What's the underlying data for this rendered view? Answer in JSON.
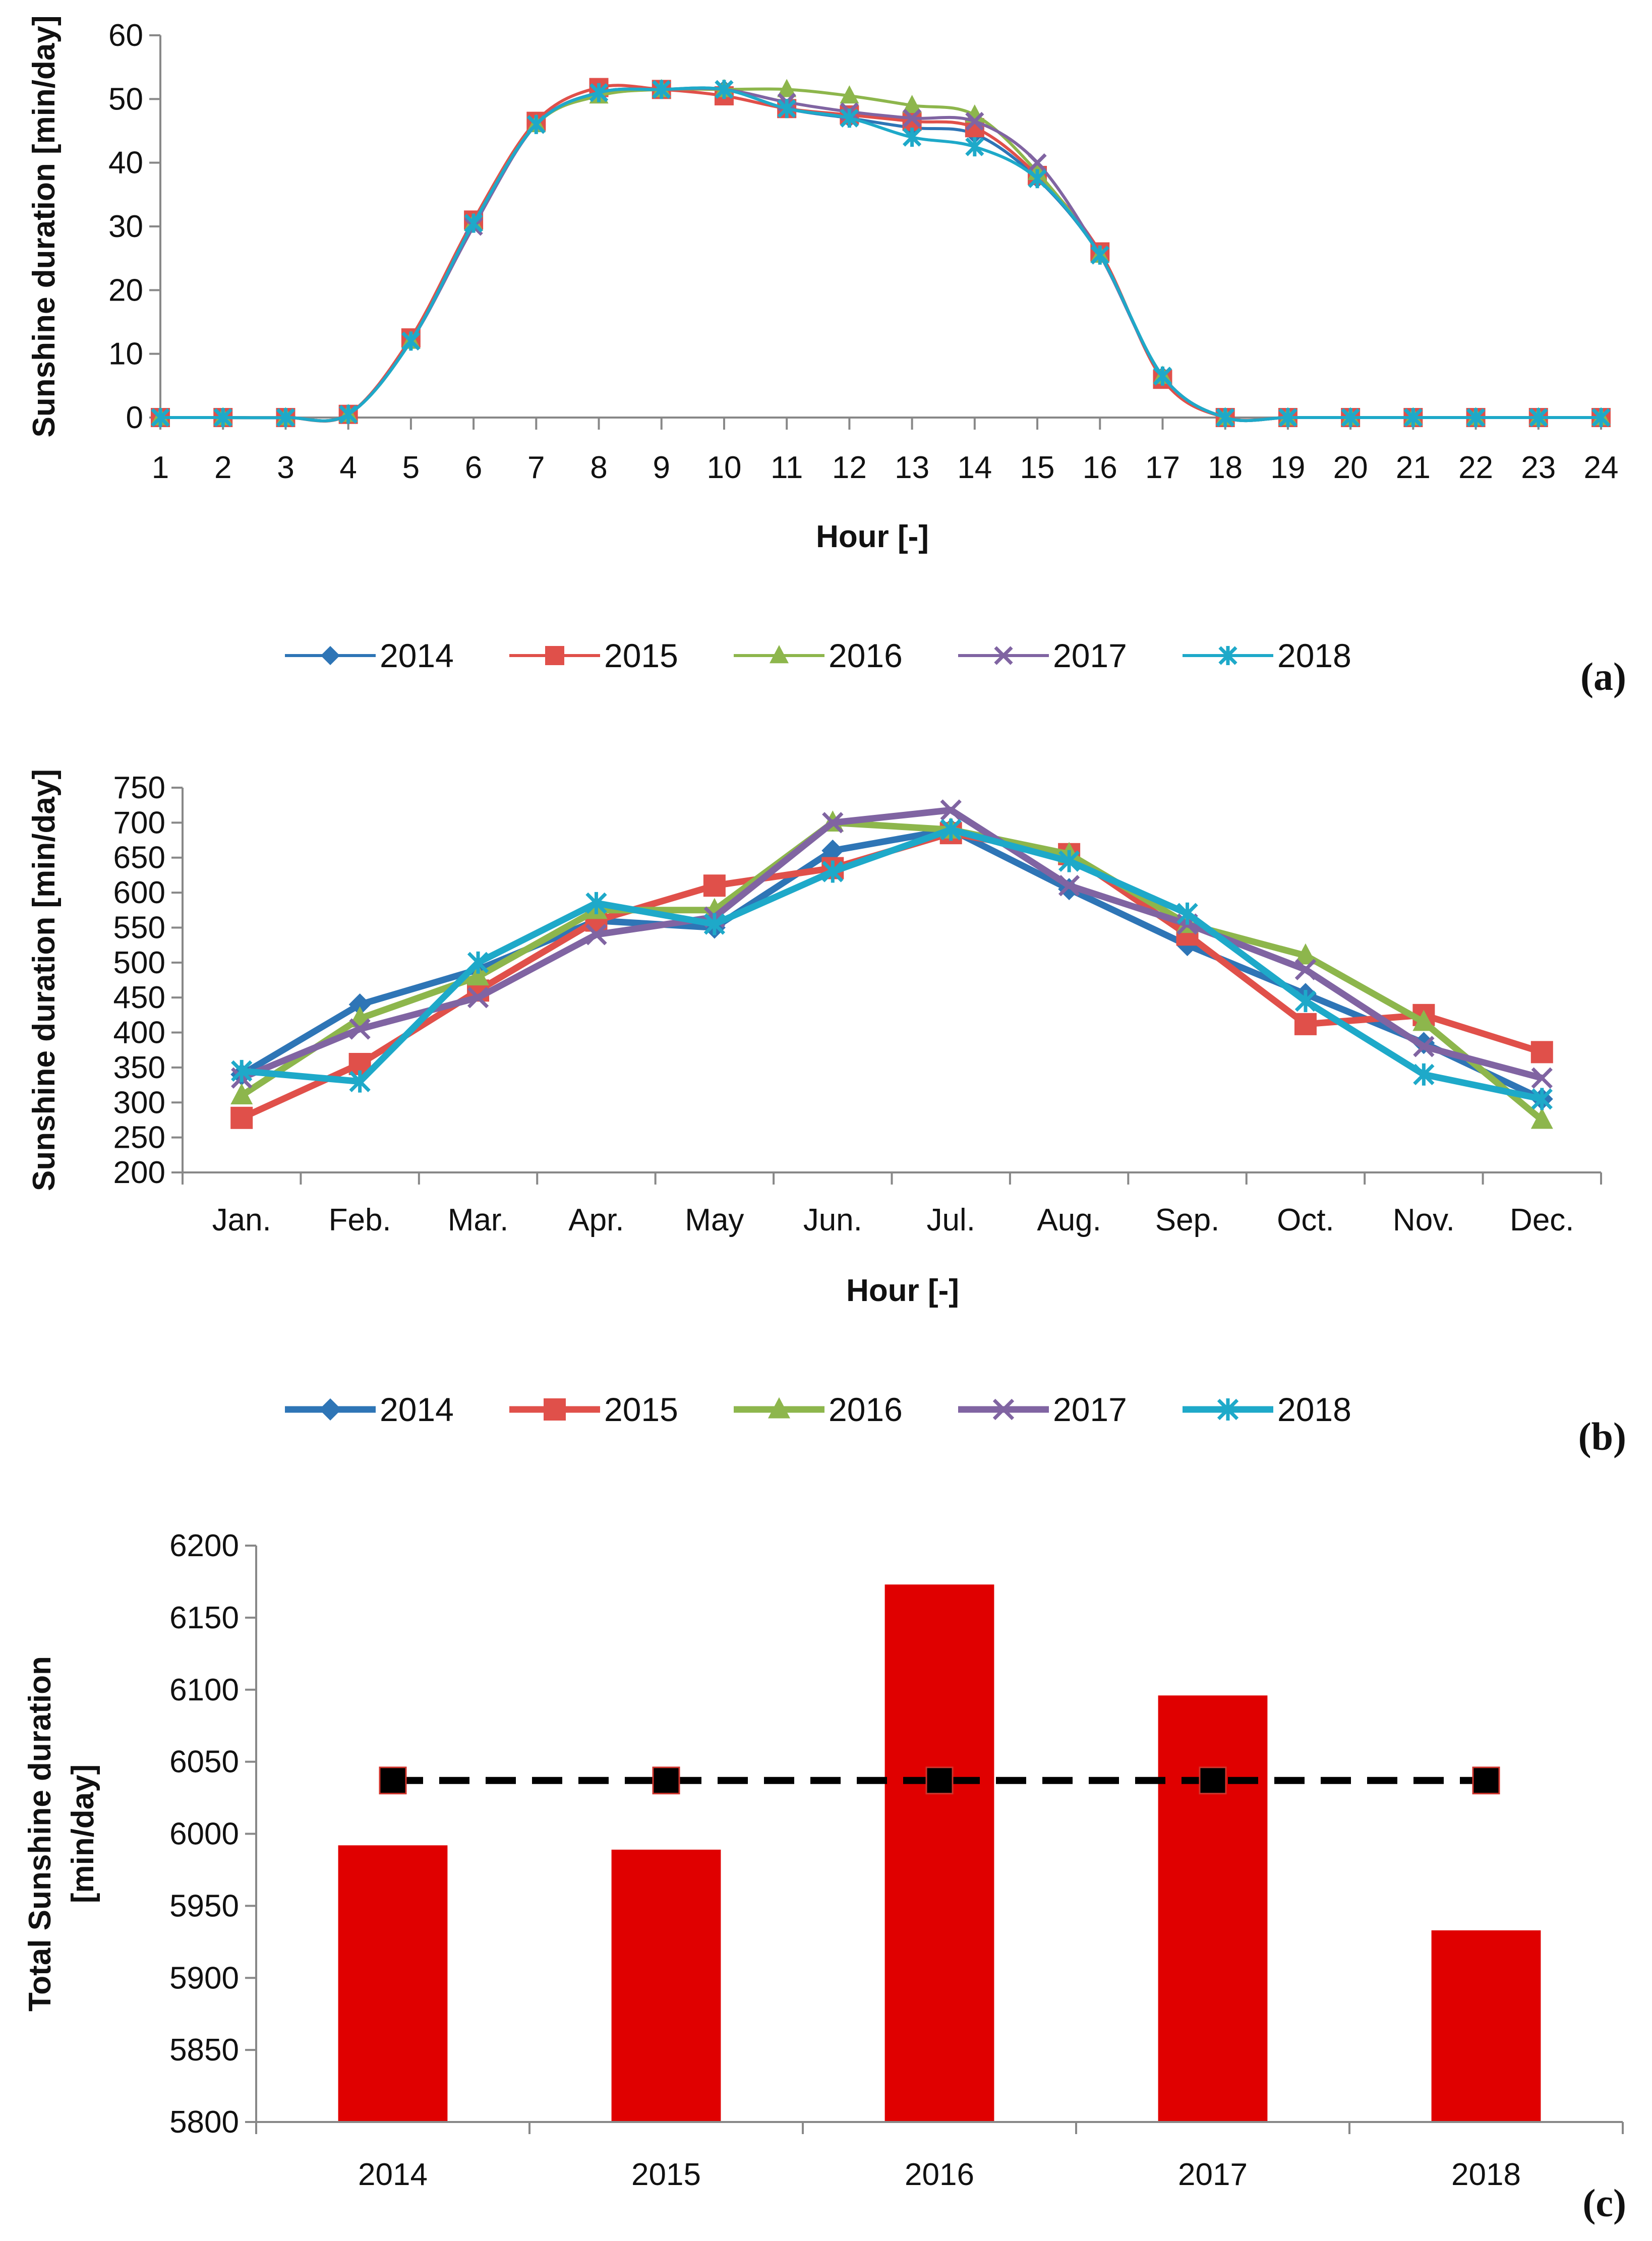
{
  "chart_data": [
    {
      "id": "a",
      "type": "line",
      "panel_label": "(a)",
      "xlabel": "Hour [-]",
      "ylabel": "Sunshine duration [min/day]",
      "categories": [
        "1",
        "2",
        "3",
        "4",
        "5",
        "6",
        "7",
        "8",
        "9",
        "10",
        "11",
        "12",
        "13",
        "14",
        "15",
        "16",
        "17",
        "18",
        "19",
        "20",
        "21",
        "22",
        "23",
        "24"
      ],
      "ylim": [
        0,
        60
      ],
      "yticks": [
        "0",
        "10",
        "20",
        "30",
        "40",
        "50",
        "60"
      ],
      "legend_position": "bottom",
      "series": [
        {
          "name": "2014",
          "color": "#2e75b6",
          "marker": "diamond",
          "values": [
            0,
            0,
            0,
            0.5,
            12,
            30.5,
            46,
            51,
            51.5,
            51.5,
            48.5,
            47,
            45.5,
            44.5,
            37.5,
            25.5,
            6.5,
            0,
            0,
            0,
            0,
            0,
            0,
            0
          ]
        },
        {
          "name": "2015",
          "color": "#e0504a",
          "marker": "square",
          "values": [
            0,
            0,
            0,
            0.5,
            12.5,
            31,
            46.5,
            51.8,
            51.5,
            50.5,
            48.5,
            47.5,
            46.5,
            45.5,
            38,
            26,
            6,
            0,
            0,
            0,
            0,
            0,
            0,
            0
          ]
        },
        {
          "name": "2016",
          "color": "#8db64c",
          "marker": "triangle",
          "values": [
            0,
            0,
            0,
            0.5,
            12,
            30.5,
            46,
            50.5,
            51.5,
            51.5,
            51.5,
            50.5,
            49,
            47.5,
            38.5,
            25.5,
            6.5,
            0,
            0,
            0,
            0,
            0,
            0,
            0
          ]
        },
        {
          "name": "2017",
          "color": "#8064a2",
          "marker": "x",
          "values": [
            0,
            0,
            0,
            0.5,
            12,
            30,
            46,
            51,
            51.5,
            51.5,
            49.5,
            48,
            47,
            46.5,
            40,
            25.5,
            6.5,
            0,
            0,
            0,
            0,
            0,
            0,
            0
          ]
        },
        {
          "name": "2018",
          "color": "#1ea9c9",
          "marker": "asterisk",
          "values": [
            0,
            0,
            0,
            0.5,
            12,
            30.5,
            46,
            51,
            51.5,
            51.5,
            48.5,
            47,
            44,
            42.5,
            37.5,
            25.5,
            6.5,
            0,
            0,
            0,
            0,
            0,
            0,
            0
          ]
        }
      ]
    },
    {
      "id": "b",
      "type": "line",
      "panel_label": "(b)",
      "xlabel": "Hour [-]",
      "ylabel": "Sunshine duration [min/day]",
      "categories": [
        "Jan.",
        "Feb.",
        "Mar.",
        "Apr.",
        "May",
        "Jun.",
        "Jul.",
        "Aug.",
        "Sep.",
        "Oct.",
        "Nov.",
        "Dec."
      ],
      "ylim": [
        200,
        750
      ],
      "yticks": [
        "200",
        "250",
        "300",
        "350",
        "400",
        "450",
        "500",
        "550",
        "600",
        "650",
        "700",
        "750"
      ],
      "legend_position": "bottom",
      "series": [
        {
          "name": "2014",
          "color": "#2e75b6",
          "marker": "diamond",
          "values": [
            340,
            440,
            490,
            560,
            550,
            660,
            690,
            605,
            525,
            455,
            385,
            305
          ]
        },
        {
          "name": "2015",
          "color": "#e0504a",
          "marker": "square",
          "values": [
            278,
            355,
            460,
            560,
            610,
            635,
            685,
            655,
            540,
            412,
            425,
            372
          ]
        },
        {
          "name": "2016",
          "color": "#8db64c",
          "marker": "triangle",
          "values": [
            310,
            420,
            480,
            575,
            575,
            700,
            690,
            655,
            555,
            510,
            415,
            275
          ]
        },
        {
          "name": "2017",
          "color": "#8064a2",
          "marker": "x",
          "values": [
            335,
            405,
            450,
            540,
            565,
            700,
            718,
            610,
            555,
            490,
            380,
            335
          ]
        },
        {
          "name": "2018",
          "color": "#1ea9c9",
          "marker": "asterisk",
          "values": [
            345,
            330,
            500,
            585,
            555,
            630,
            690,
            645,
            570,
            445,
            340,
            305
          ]
        }
      ]
    },
    {
      "id": "c",
      "type": "bar",
      "panel_label": "(c)",
      "xlabel": "",
      "ylabel": "Total Sunshine duration [min/day]",
      "ylabel_lines": [
        "Total Sunshine duration",
        "[min/day]"
      ],
      "categories": [
        "2014",
        "2015",
        "2016",
        "2017",
        "2018"
      ],
      "ylim": [
        5800,
        6200
      ],
      "yticks": [
        "5800",
        "5850",
        "5900",
        "5950",
        "6000",
        "6050",
        "6100",
        "6150",
        "6200"
      ],
      "bar_color": "#e00000",
      "values": [
        5992,
        5989,
        6173,
        6096,
        5933
      ],
      "mean": {
        "value": 6037,
        "color": "#000000",
        "style": "dashed",
        "marker": "square"
      }
    }
  ]
}
